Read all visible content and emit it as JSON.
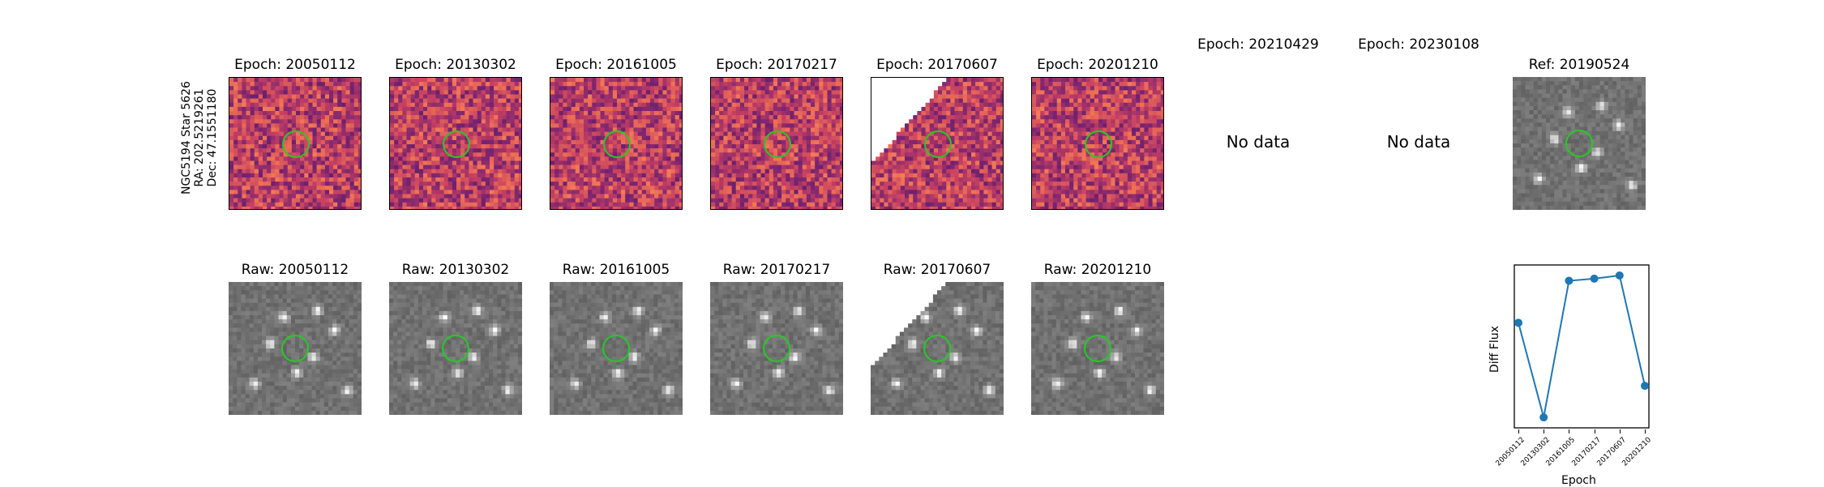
{
  "star": {
    "name": "NGC5194 Star 5626",
    "ra": "RA: 202.5219261",
    "dec": "Dec: 47.1551180"
  },
  "diff_row": [
    {
      "title": "Epoch: 20050112",
      "has_data": true
    },
    {
      "title": "Epoch: 20130302",
      "has_data": true
    },
    {
      "title": "Epoch: 20161005",
      "has_data": true
    },
    {
      "title": "Epoch: 20170217",
      "has_data": true
    },
    {
      "title": "Epoch: 20170607",
      "has_data": true
    },
    {
      "title": "Epoch: 20201210",
      "has_data": true
    },
    {
      "title": "Epoch: 20210429",
      "has_data": false
    },
    {
      "title": "Epoch: 20230108",
      "has_data": false
    }
  ],
  "no_data_text": "No data",
  "reference": {
    "title": "Ref: 20190524"
  },
  "raw_row": [
    {
      "title": "Raw: 20050112"
    },
    {
      "title": "Raw: 20130302"
    },
    {
      "title": "Raw: 20161005"
    },
    {
      "title": "Raw: 20170217"
    },
    {
      "title": "Raw: 20170607"
    },
    {
      "title": "Raw: 20201210"
    }
  ],
  "colors": {
    "aperture": "#22cc22",
    "series": "#1f77b4"
  },
  "chart_data": {
    "type": "line",
    "title": "",
    "xlabel": "Epoch",
    "ylabel": "Diff Flux",
    "categories": [
      "20050112",
      "20130302",
      "20161005",
      "20170217",
      "20170607",
      "20201210"
    ],
    "values": [
      0.55,
      -0.35,
      0.95,
      0.97,
      1.0,
      -0.05
    ],
    "ylim": [
      -0.45,
      1.1
    ],
    "y_ticks_visible": false
  }
}
